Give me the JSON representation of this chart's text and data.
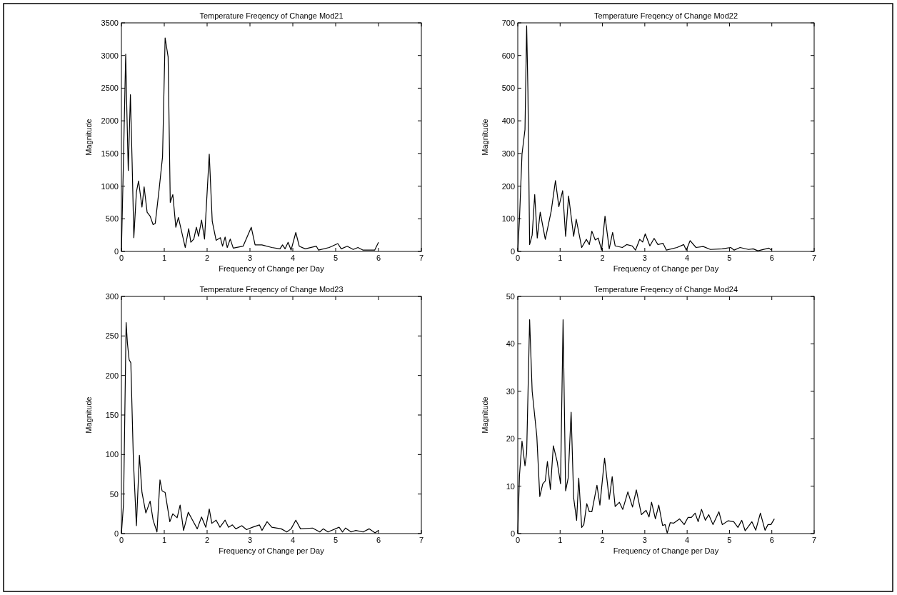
{
  "chart_data": [
    {
      "type": "line",
      "title": "Temperature Freqency of Change Mod21",
      "xlabel": "Frequency of Change per Day",
      "ylabel": "Magnitude",
      "color": "#000000",
      "xlim": [
        0,
        7
      ],
      "xticks": [
        0,
        1,
        2,
        3,
        4,
        5,
        6,
        7
      ],
      "ylim": [
        0,
        3500
      ],
      "yticks": [
        0,
        500,
        1000,
        1500,
        2000,
        2500,
        3000,
        3500
      ],
      "x": [
        0,
        0.04,
        0.1,
        0.12,
        0.16,
        0.21,
        0.25,
        0.29,
        0.35,
        0.4,
        0.48,
        0.53,
        0.6,
        0.67,
        0.74,
        0.79,
        0.88,
        0.96,
        1.02,
        1.09,
        1.14,
        1.2,
        1.27,
        1.33,
        1.49,
        1.57,
        1.62,
        1.69,
        1.75,
        1.8,
        1.87,
        1.94,
        2.05,
        2.12,
        2.21,
        2.31,
        2.36,
        2.42,
        2.47,
        2.54,
        2.61,
        2.84,
        3.03,
        3.12,
        3.28,
        3.51,
        3.7,
        3.76,
        3.82,
        3.89,
        3.96,
        4.07,
        4.15,
        4.29,
        4.55,
        4.6,
        4.85,
        5.05,
        5.13,
        5.27,
        5.41,
        5.52,
        5.64,
        5.91,
        6
      ],
      "values": [
        0,
        1160,
        3020,
        2360,
        1240,
        2400,
        1370,
        210,
        910,
        1080,
        680,
        990,
        600,
        540,
        410,
        430,
        950,
        1450,
        3270,
        2980,
        750,
        870,
        370,
        520,
        60,
        350,
        140,
        190,
        370,
        230,
        480,
        190,
        1490,
        460,
        170,
        210,
        80,
        220,
        60,
        190,
        50,
        80,
        370,
        100,
        100,
        60,
        40,
        100,
        40,
        140,
        20,
        290,
        80,
        40,
        80,
        20,
        60,
        120,
        40,
        80,
        30,
        60,
        20,
        20,
        140
      ]
    },
    {
      "type": "line",
      "title": "Temperature Freqency of Change Mod22",
      "xlabel": "Frequency of Change per Day",
      "ylabel": "Magnitude",
      "color": "#000000",
      "xlim": [
        0,
        7
      ],
      "xticks": [
        0,
        1,
        2,
        3,
        4,
        5,
        6,
        7
      ],
      "ylim": [
        0,
        700
      ],
      "yticks": [
        0,
        100,
        200,
        300,
        400,
        500,
        600,
        700
      ],
      "x": [
        0,
        0.04,
        0.1,
        0.17,
        0.21,
        0.24,
        0.28,
        0.34,
        0.4,
        0.46,
        0.53,
        0.65,
        0.79,
        0.89,
        0.97,
        1.06,
        1.13,
        1.2,
        1.32,
        1.38,
        1.51,
        1.62,
        1.69,
        1.75,
        1.83,
        1.9,
        1.98,
        2.06,
        2.16,
        2.24,
        2.3,
        2.47,
        2.57,
        2.7,
        2.78,
        2.88,
        2.95,
        3.01,
        3.12,
        3.22,
        3.31,
        3.43,
        3.51,
        3.76,
        3.92,
        3.98,
        4.07,
        4.21,
        4.38,
        4.55,
        4.83,
        5.03,
        5.11,
        5.25,
        5.45,
        5.56,
        5.67,
        5.93,
        6
      ],
      "values": [
        0,
        99,
        298,
        373,
        691,
        489,
        21,
        50,
        174,
        41,
        120,
        37,
        124,
        217,
        137,
        186,
        46,
        170,
        46,
        99,
        12,
        37,
        21,
        62,
        35,
        41,
        4,
        108,
        8,
        58,
        17,
        12,
        21,
        17,
        4,
        37,
        29,
        54,
        17,
        40,
        21,
        25,
        4,
        12,
        21,
        4,
        33,
        12,
        15,
        6,
        8,
        12,
        4,
        12,
        6,
        8,
        2,
        10,
        4
      ]
    },
    {
      "type": "line",
      "title": "Temperature Freqency of Change Mod23",
      "xlabel": "Frequency of Change per Day",
      "ylabel": "Magnitude",
      "color": "#000000",
      "xlim": [
        0,
        7
      ],
      "xticks": [
        0,
        1,
        2,
        3,
        4,
        5,
        6,
        7
      ],
      "ylim": [
        0,
        300
      ],
      "yticks": [
        0,
        50,
        100,
        150,
        200,
        250,
        300
      ],
      "x": [
        0,
        0.05,
        0.11,
        0.14,
        0.18,
        0.22,
        0.28,
        0.35,
        0.42,
        0.48,
        0.57,
        0.67,
        0.74,
        0.83,
        0.9,
        0.95,
        1.02,
        1.13,
        1.2,
        1.3,
        1.37,
        1.45,
        1.56,
        1.66,
        1.77,
        1.87,
        1.97,
        2.05,
        2.11,
        2.21,
        2.3,
        2.42,
        2.5,
        2.59,
        2.67,
        2.81,
        2.92,
        3.06,
        3.22,
        3.28,
        3.4,
        3.51,
        3.73,
        3.86,
        3.96,
        4.07,
        4.18,
        4.46,
        4.63,
        4.71,
        4.82,
        5.08,
        5.16,
        5.23,
        5.36,
        5.47,
        5.64,
        5.78,
        5.92,
        6
      ],
      "values": [
        0,
        38,
        267,
        241,
        220,
        216,
        92,
        10,
        99,
        52,
        26,
        41,
        17,
        2,
        68,
        54,
        52,
        15,
        25,
        20,
        36,
        4,
        27,
        17,
        6,
        21,
        8,
        31,
        13,
        17,
        8,
        17,
        8,
        11,
        6,
        10,
        5,
        8,
        11,
        4,
        15,
        8,
        6,
        2,
        6,
        17,
        6,
        7,
        2,
        6,
        2,
        8,
        2,
        7,
        2,
        4,
        2,
        6,
        1,
        4
      ]
    },
    {
      "type": "line",
      "title": "Temperature Freqency of Change Mod24",
      "xlabel": "Frequency of Change per Day",
      "ylabel": "Magnitude",
      "color": "#000000",
      "xlim": [
        0,
        7
      ],
      "xticks": [
        0,
        1,
        2,
        3,
        4,
        5,
        6,
        7
      ],
      "ylim": [
        0,
        50
      ],
      "yticks": [
        0,
        10,
        20,
        30,
        40,
        50
      ],
      "x": [
        0,
        0.04,
        0.1,
        0.17,
        0.21,
        0.28,
        0.34,
        0.45,
        0.52,
        0.59,
        0.65,
        0.7,
        0.77,
        0.84,
        0.93,
        1.01,
        1.07,
        1.13,
        1.19,
        1.26,
        1.32,
        1.39,
        1.44,
        1.51,
        1.56,
        1.63,
        1.69,
        1.75,
        1.87,
        1.94,
        2.05,
        2.16,
        2.23,
        2.3,
        2.4,
        2.48,
        2.6,
        2.71,
        2.8,
        2.92,
        3.03,
        3.1,
        3.16,
        3.25,
        3.33,
        3.42,
        3.48,
        3.53,
        3.6,
        3.68,
        3.82,
        3.93,
        4.02,
        4.1,
        4.19,
        4.26,
        4.34,
        4.43,
        4.51,
        4.61,
        4.75,
        4.83,
        4.97,
        5.1,
        5.2,
        5.29,
        5.37,
        5.53,
        5.62,
        5.73,
        5.84,
        5.91,
        5.98,
        6.06
      ],
      "values": [
        0,
        12.2,
        19.5,
        14.3,
        17,
        45.1,
        30,
        20.5,
        7.8,
        10.5,
        11.1,
        15.2,
        9.3,
        18.5,
        15.2,
        10.5,
        45.1,
        9,
        11.7,
        25.6,
        7.5,
        2.8,
        11.7,
        1.3,
        1.9,
        6.3,
        4.6,
        4.6,
        10.2,
        6,
        15.9,
        7.2,
        12,
        5.7,
        6.6,
        5.1,
        8.8,
        5.6,
        9.2,
        4,
        4.9,
        3.5,
        6.6,
        3.1,
        6,
        1.7,
        1.9,
        0.1,
        2.3,
        2.2,
        3.1,
        1.9,
        3.4,
        3.4,
        4.3,
        2.5,
        5.1,
        2.8,
        4,
        1.9,
        4.6,
        1.9,
        2.7,
        2.5,
        1.3,
        2.8,
        0.6,
        2.5,
        0.7,
        4.3,
        0.7,
        1.9,
        1.9,
        3.1
      ]
    }
  ]
}
